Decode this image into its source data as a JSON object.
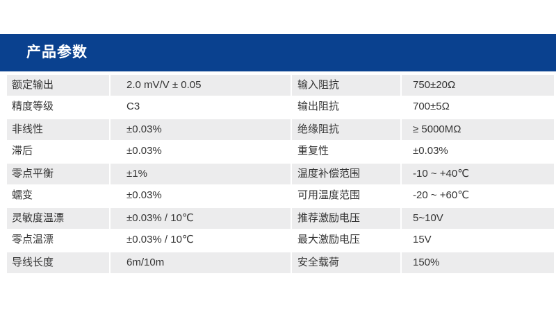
{
  "header": {
    "title": "产品参数"
  },
  "colors": {
    "primary_blue": "#0a418f",
    "row_gray": "#ececed",
    "text": "#333333"
  },
  "table": {
    "rows": [
      {
        "label_left": "额定输出",
        "value_left": "2.0 mV/V ± 0.05",
        "label_right": "输入阻抗",
        "value_right": "750±20Ω"
      },
      {
        "label_left": "精度等级",
        "value_left": "C3",
        "label_right": "输出阻抗",
        "value_right": "700±5Ω"
      },
      {
        "label_left": "非线性",
        "value_left": "±0.03%",
        "label_right": "绝缘阻抗",
        "value_right": "≥ 5000MΩ"
      },
      {
        "label_left": "滞后",
        "value_left": "±0.03%",
        "label_right": "重复性",
        "value_right": "±0.03%"
      },
      {
        "label_left": "零点平衡",
        "value_left": "±1%",
        "label_right": "温度补偿范围",
        "value_right": "-10 ~ +40℃"
      },
      {
        "label_left": "蠕变",
        "value_left": "±0.03%",
        "label_right": "可用温度范围",
        "value_right": "-20 ~ +60℃"
      },
      {
        "label_left": "灵敏度温漂",
        "value_left": "±0.03% / 10℃",
        "label_right": "推荐激励电压",
        "value_right": "5~10V"
      },
      {
        "label_left": "零点温漂",
        "value_left": "±0.03% / 10℃",
        "label_right": "最大激励电压",
        "value_right": "15V"
      },
      {
        "label_left": "导线长度",
        "value_left": "6m/10m",
        "label_right": "安全载荷",
        "value_right": "150%"
      }
    ]
  }
}
